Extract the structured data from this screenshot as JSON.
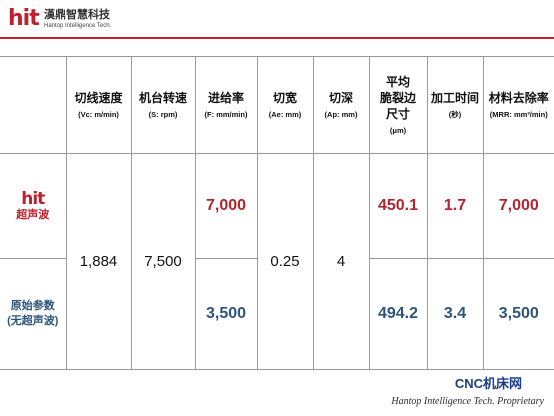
{
  "brand": {
    "logo_text": "hit",
    "name_cn": "漢鼎智慧科技",
    "name_en": "Hantop Intelligence Tech.",
    "rule_color": "#c91f2b"
  },
  "table": {
    "headers": [
      {
        "label": "",
        "unit": ""
      },
      {
        "label": "切线速度",
        "unit": "(Vc: m/min)"
      },
      {
        "label": "机台转速",
        "unit": "(S: rpm)"
      },
      {
        "label": "进给率",
        "unit": "(F: mm/min)"
      },
      {
        "label": "切宽",
        "unit": "(Ae: mm)"
      },
      {
        "label": "切深",
        "unit": "(Ap: mm)"
      },
      {
        "label": "平均\n脆裂边\n尺寸",
        "unit": "(μm)"
      },
      {
        "label": "加工时间",
        "unit": "(秒)"
      },
      {
        "label": "材料去除率",
        "unit": "(MRR: mm³/min)"
      }
    ],
    "shared": {
      "cutting_speed": "1,884",
      "spindle_speed": "7,500",
      "cut_width": "0.25",
      "cut_depth": "4"
    },
    "rows": [
      {
        "label_logo": "hit",
        "label": "超声波",
        "feed_rate": "7,000",
        "edge_chipping": "450.1",
        "machining_time": "1.7",
        "mrr": "7,000"
      },
      {
        "label_line1": "原始参数",
        "label_line2": "(无超声波)",
        "feed_rate": "3,500",
        "edge_chipping": "494.2",
        "machining_time": "3.4",
        "mrr": "3,500"
      }
    ]
  },
  "footer": {
    "brand": "CNC机床网",
    "tagline": "Hantop Intelligence Tech. Proprietary"
  },
  "colors": {
    "accent_red": "#b0252f",
    "accent_blue": "#2d5579",
    "footer_blue": "#1a3c8c"
  }
}
